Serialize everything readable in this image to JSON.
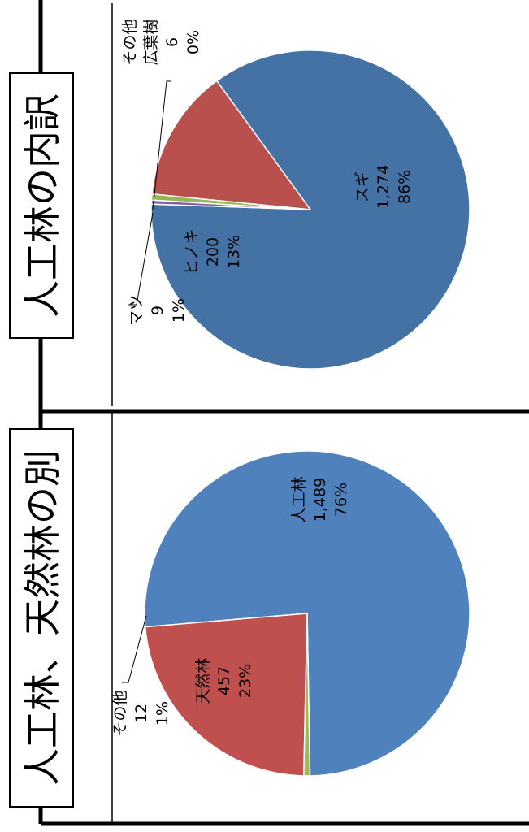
{
  "chart_data": [
    {
      "type": "pie",
      "title": "人工林の内訳",
      "slices": [
        {
          "name": "スギ",
          "value": 1274,
          "value_label": "1,274",
          "percent_label": "86%",
          "color": "#4472a4"
        },
        {
          "name": "ヒノキ",
          "value": 200,
          "value_label": "200",
          "percent_label": "13%",
          "color": "#b9504e"
        },
        {
          "name": "マツ",
          "value": 9,
          "value_label": "9",
          "percent_label": "1%",
          "color": "#98b654"
        },
        {
          "name": "その他広葉樹",
          "name_lines": [
            "その他",
            "広葉樹"
          ],
          "value": 6,
          "value_label": "6",
          "percent_label": "0%",
          "color": "#7e62a1"
        }
      ]
    },
    {
      "type": "pie",
      "title": "人工林、天然林の別",
      "slices": [
        {
          "name": "人工林",
          "value": 1489,
          "value_label": "1,489",
          "percent_label": "76%",
          "color": "#4f81bd"
        },
        {
          "name": "天然林",
          "value": 457,
          "value_label": "457",
          "percent_label": "23%",
          "color": "#c0504d"
        },
        {
          "name": "その他",
          "value": 12,
          "value_label": "12",
          "percent_label": "1%",
          "color": "#9bbb59"
        }
      ]
    }
  ]
}
